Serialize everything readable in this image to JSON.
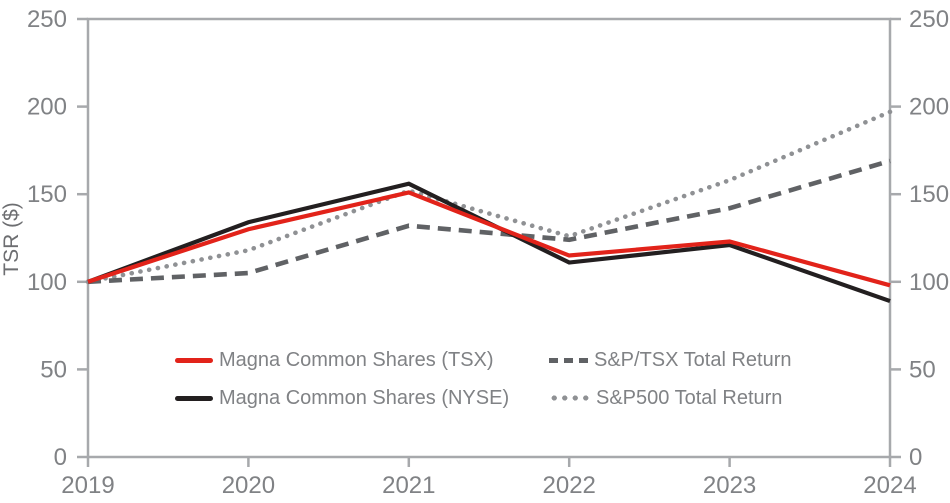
{
  "chart_data": {
    "type": "line",
    "title": "",
    "ylabel": "TSR ($)",
    "xlabel": "",
    "x_labels": [
      "2019",
      "2020",
      "2021",
      "2022",
      "2023",
      "2024"
    ],
    "ylim": [
      0,
      250
    ],
    "yticks": [
      0,
      50,
      100,
      150,
      200,
      250
    ],
    "grid": false,
    "legend_position": "inside-bottom-left",
    "axis_color": "#a7a9ac",
    "tick_label_color": "#808285",
    "series": [
      {
        "name": "Magna Common Shares (TSX)",
        "style": "solid",
        "color": "#e2231a",
        "values": [
          100,
          130,
          151,
          115,
          123,
          98
        ]
      },
      {
        "name": "Magna Common Shares (NYSE)",
        "style": "solid",
        "color": "#231f20",
        "values": [
          100,
          134,
          156,
          111,
          121,
          89
        ]
      },
      {
        "name": "S&P/TSX Total Return",
        "style": "dashed",
        "color": "#606265",
        "values": [
          100,
          105,
          132,
          124,
          142,
          169
        ]
      },
      {
        "name": "S&P500 Total Return",
        "style": "dotted",
        "color": "#8f9194",
        "values": [
          100,
          118,
          152,
          126,
          158,
          197
        ]
      }
    ]
  }
}
